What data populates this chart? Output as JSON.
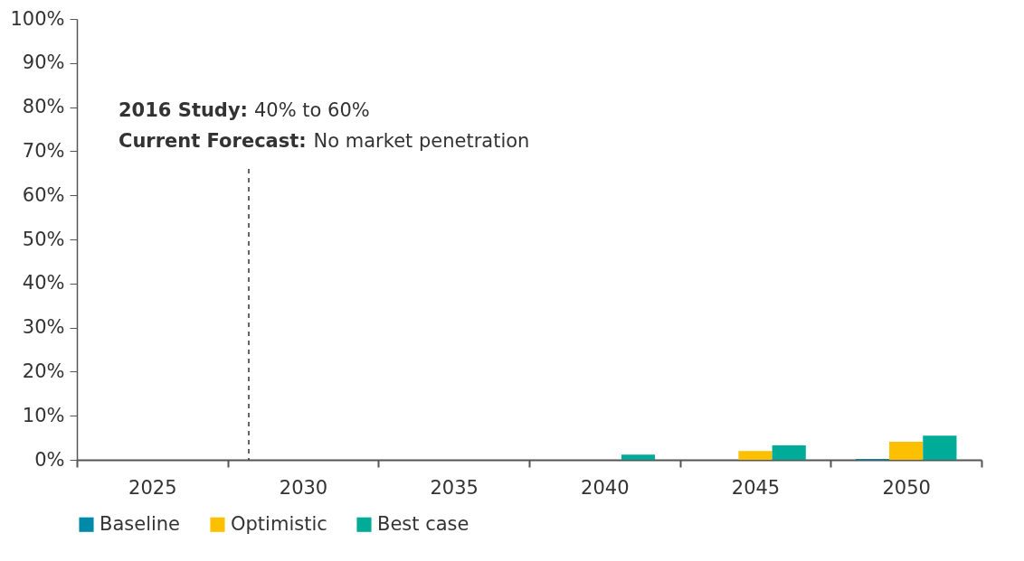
{
  "chart_data": {
    "type": "bar",
    "categories": [
      "2025",
      "2030",
      "2035",
      "2040",
      "2045",
      "2050"
    ],
    "series": [
      {
        "name": "Baseline",
        "color": "#0089a8",
        "values": [
          0,
          0,
          0,
          0,
          0,
          0.2
        ]
      },
      {
        "name": "Optimistic",
        "color": "#fcc000",
        "values": [
          0,
          0,
          0,
          0,
          2.0,
          4.1
        ]
      },
      {
        "name": "Best case",
        "color": "#00ab97",
        "values": [
          0,
          0,
          0,
          1.2,
          3.3,
          5.5
        ]
      }
    ],
    "ylim": [
      0,
      100
    ],
    "yticks": [
      {
        "value": 0,
        "label": "0%"
      },
      {
        "value": 10,
        "label": "10%"
      },
      {
        "value": 20,
        "label": "20%"
      },
      {
        "value": 30,
        "label": "30%"
      },
      {
        "value": 40,
        "label": "40%"
      },
      {
        "value": 50,
        "label": "50%"
      },
      {
        "value": 60,
        "label": "60%"
      },
      {
        "value": 70,
        "label": "70%"
      },
      {
        "value": 80,
        "label": "80%"
      },
      {
        "value": 90,
        "label": "90%"
      },
      {
        "value": 100,
        "label": "100%"
      }
    ],
    "grid": false,
    "legend": "bottom",
    "annotations": [
      "2016 Study: 40% to 60%",
      "Current Forecast: No market penetration"
    ]
  }
}
